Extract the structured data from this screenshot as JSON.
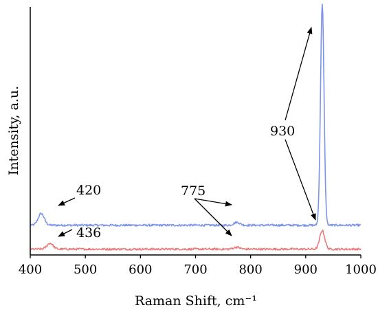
{
  "chart_data": {
    "type": "line",
    "xlabel": "Raman Shift, cm⁻¹",
    "ylabel": "Intensity, a.u.",
    "xlim": [
      400,
      1000
    ],
    "xticks": [
      400,
      500,
      600,
      700,
      800,
      900,
      1000
    ],
    "grid": false,
    "legend": "none",
    "y_tick_labels_shown": false,
    "series": [
      {
        "color": "#7b94e8",
        "baseline": 1.02,
        "peaks": [
          {
            "x": 420,
            "height": 0.4
          },
          {
            "x": 775,
            "height": 0.1
          },
          {
            "x": 930,
            "height": 7.6
          }
        ]
      },
      {
        "color": "#ea7b7b",
        "baseline": 0.2,
        "peaks": [
          {
            "x": 436,
            "height": 0.2
          },
          {
            "x": 775,
            "height": 0.07
          },
          {
            "x": 930,
            "height": 0.64
          }
        ]
      }
    ],
    "annotations": [
      "420",
      "436",
      "775",
      "930"
    ]
  }
}
